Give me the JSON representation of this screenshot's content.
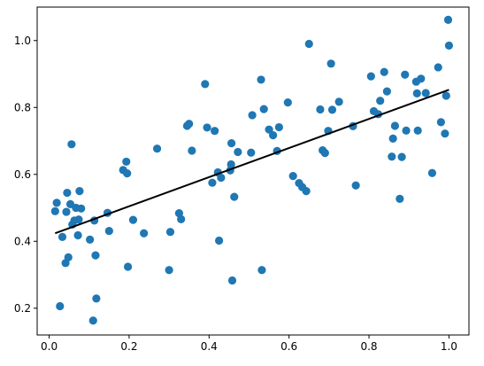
{
  "chart_data": {
    "type": "scatter",
    "title": "",
    "xlabel": "",
    "ylabel": "",
    "xlim": [
      -0.03,
      1.05
    ],
    "ylim": [
      0.12,
      1.1
    ],
    "grid": false,
    "xticks": [
      0.0,
      0.2,
      0.4,
      0.6,
      0.8,
      1.0
    ],
    "xtick_labels": [
      "0.0",
      "0.2",
      "0.4",
      "0.6",
      "0.8",
      "1.0"
    ],
    "yticks": [
      0.2,
      0.4,
      0.6,
      0.8,
      1.0
    ],
    "ytick_labels": [
      "0.2",
      "0.4",
      "0.6",
      "0.8",
      "1.0"
    ],
    "colors": {
      "points": "#1f77b4",
      "fit_line": "#000000"
    },
    "series": [
      {
        "kind": "scatter",
        "points": [
          [
            0.015,
            0.49
          ],
          [
            0.019,
            0.515
          ],
          [
            0.027,
            0.206
          ],
          [
            0.033,
            0.413
          ],
          [
            0.041,
            0.335
          ],
          [
            0.043,
            0.488
          ],
          [
            0.045,
            0.545
          ],
          [
            0.048,
            0.352
          ],
          [
            0.053,
            0.511
          ],
          [
            0.056,
            0.69
          ],
          [
            0.058,
            0.45
          ],
          [
            0.063,
            0.462
          ],
          [
            0.067,
            0.5
          ],
          [
            0.072,
            0.418
          ],
          [
            0.074,
            0.465
          ],
          [
            0.076,
            0.55
          ],
          [
            0.08,
            0.498
          ],
          [
            0.102,
            0.405
          ],
          [
            0.11,
            0.163
          ],
          [
            0.113,
            0.462
          ],
          [
            0.116,
            0.358
          ],
          [
            0.118,
            0.229
          ],
          [
            0.146,
            0.485
          ],
          [
            0.15,
            0.431
          ],
          [
            0.185,
            0.613
          ],
          [
            0.193,
            0.638
          ],
          [
            0.195,
            0.603
          ],
          [
            0.197,
            0.324
          ],
          [
            0.21,
            0.464
          ],
          [
            0.237,
            0.424
          ],
          [
            0.27,
            0.677
          ],
          [
            0.3,
            0.314
          ],
          [
            0.303,
            0.428
          ],
          [
            0.325,
            0.484
          ],
          [
            0.33,
            0.466
          ],
          [
            0.345,
            0.745
          ],
          [
            0.35,
            0.751
          ],
          [
            0.357,
            0.671
          ],
          [
            0.39,
            0.87
          ],
          [
            0.395,
            0.74
          ],
          [
            0.408,
            0.575
          ],
          [
            0.414,
            0.73
          ],
          [
            0.422,
            0.606
          ],
          [
            0.425,
            0.402
          ],
          [
            0.43,
            0.59
          ],
          [
            0.453,
            0.612
          ],
          [
            0.455,
            0.63
          ],
          [
            0.456,
            0.693
          ],
          [
            0.458,
            0.283
          ],
          [
            0.463,
            0.533
          ],
          [
            0.472,
            0.667
          ],
          [
            0.505,
            0.665
          ],
          [
            0.508,
            0.777
          ],
          [
            0.53,
            0.883
          ],
          [
            0.532,
            0.314
          ],
          [
            0.537,
            0.795
          ],
          [
            0.55,
            0.734
          ],
          [
            0.56,
            0.717
          ],
          [
            0.57,
            0.67
          ],
          [
            0.575,
            0.741
          ],
          [
            0.597,
            0.815
          ],
          [
            0.61,
            0.595
          ],
          [
            0.625,
            0.574
          ],
          [
            0.633,
            0.562
          ],
          [
            0.643,
            0.55
          ],
          [
            0.65,
            0.99
          ],
          [
            0.678,
            0.794
          ],
          [
            0.684,
            0.672
          ],
          [
            0.69,
            0.664
          ],
          [
            0.698,
            0.73
          ],
          [
            0.705,
            0.931
          ],
          [
            0.708,
            0.793
          ],
          [
            0.725,
            0.817
          ],
          [
            0.76,
            0.744
          ],
          [
            0.767,
            0.567
          ],
          [
            0.805,
            0.893
          ],
          [
            0.812,
            0.789
          ],
          [
            0.823,
            0.78
          ],
          [
            0.828,
            0.82
          ],
          [
            0.838,
            0.906
          ],
          [
            0.845,
            0.848
          ],
          [
            0.857,
            0.653
          ],
          [
            0.86,
            0.707
          ],
          [
            0.865,
            0.745
          ],
          [
            0.877,
            0.527
          ],
          [
            0.882,
            0.652
          ],
          [
            0.89,
            0.898
          ],
          [
            0.893,
            0.731
          ],
          [
            0.918,
            0.877
          ],
          [
            0.92,
            0.842
          ],
          [
            0.922,
            0.731
          ],
          [
            0.93,
            0.886
          ],
          [
            0.942,
            0.843
          ],
          [
            0.958,
            0.604
          ],
          [
            0.973,
            0.92
          ],
          [
            0.98,
            0.756
          ],
          [
            0.99,
            0.722
          ],
          [
            0.993,
            0.835
          ],
          [
            0.998,
            1.062
          ],
          [
            1.0,
            0.985
          ]
        ]
      },
      {
        "kind": "line",
        "x": [
          0.015,
          1.0
        ],
        "y": [
          0.424,
          0.853
        ]
      }
    ]
  }
}
